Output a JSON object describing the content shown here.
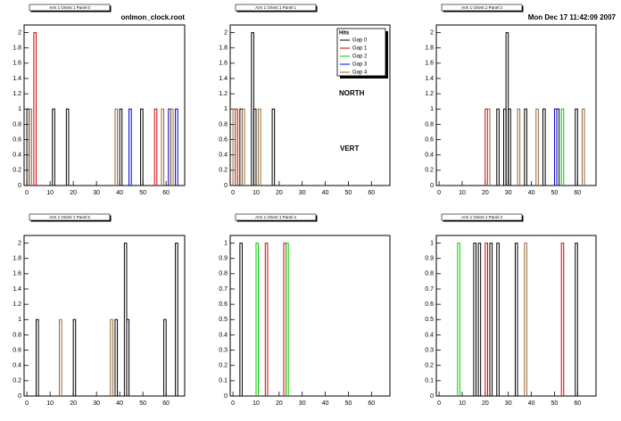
{
  "file": "onlmon_clock.root",
  "timestamp": "Mon Dec 17 11:42:09 2007",
  "chart_data": [
    {
      "type": "bar",
      "title": "Arm 1 Orient 1 Panel 0",
      "xlim": [
        -1.2,
        68
      ],
      "xticks": [
        0,
        10,
        20,
        30,
        40,
        50,
        60
      ],
      "ylim": [
        0,
        2.1
      ],
      "yticks": [
        0,
        0.2,
        0.4,
        0.6,
        0.8,
        1,
        1.2,
        1.4,
        1.6,
        1.8,
        2
      ],
      "series": [
        {
          "color": "#000000",
          "x": [
            0,
            11,
            17,
            40,
            49
          ],
          "values": [
            1,
            1,
            1,
            1,
            1
          ]
        },
        {
          "color": "#cc0000",
          "x": [
            3,
            55
          ],
          "values": [
            2,
            1
          ]
        },
        {
          "color": "#0000cc",
          "x": [
            44,
            61,
            64
          ],
          "values": [
            1,
            1,
            1
          ]
        },
        {
          "color": "#996633",
          "x": [
            1,
            38,
            58,
            62
          ],
          "values": [
            1,
            1,
            1,
            1
          ]
        }
      ]
    },
    {
      "type": "bar",
      "title": "Arm 1 Orient 1 Panel 1",
      "xlim": [
        -1.2,
        68
      ],
      "xticks": [
        0,
        10,
        20,
        30,
        40,
        50,
        60
      ],
      "ylim": [
        0,
        2.1
      ],
      "yticks": [
        0,
        0.2,
        0.4,
        0.6,
        0.8,
        1,
        1.2,
        1.4,
        1.6,
        1.8,
        2
      ],
      "legend_title": "Hits",
      "annotations": [
        "NORTH",
        "VERT"
      ],
      "series": [
        {
          "name": "Gap 0",
          "color": "#000000",
          "x": [
            3,
            8,
            9,
            17
          ],
          "values": [
            1,
            2,
            1,
            1
          ]
        },
        {
          "name": "Gap 1",
          "color": "#cc0000",
          "x": [
            1
          ],
          "values": [
            1
          ]
        },
        {
          "name": "Gap 2",
          "color": "#00cc00",
          "x": [],
          "values": []
        },
        {
          "name": "Gap 3",
          "color": "#0000cc",
          "x": [],
          "values": []
        },
        {
          "name": "Gap 4",
          "color": "#996633",
          "x": [
            0,
            4,
            11
          ],
          "values": [
            1,
            1,
            1
          ]
        }
      ]
    },
    {
      "type": "bar",
      "title": "Arm 1 Orient 1 Panel 2",
      "xlim": [
        -1.2,
        68
      ],
      "xticks": [
        0,
        10,
        20,
        30,
        40,
        50,
        60
      ],
      "ylim": [
        0,
        2.1
      ],
      "yticks": [
        0,
        0.2,
        0.4,
        0.6,
        0.8,
        1,
        1.2,
        1.4,
        1.6,
        1.8,
        2
      ],
      "series": [
        {
          "color": "#000000",
          "x": [
            25,
            28,
            29,
            30,
            37,
            45,
            51,
            59
          ],
          "values": [
            1,
            1,
            2,
            1,
            1,
            1,
            1,
            1
          ]
        },
        {
          "color": "#cc0000",
          "x": [
            20
          ],
          "values": [
            1
          ]
        },
        {
          "color": "#00cc00",
          "x": [
            53
          ],
          "values": [
            1
          ]
        },
        {
          "color": "#0000cc",
          "x": [
            50
          ],
          "values": [
            1
          ]
        },
        {
          "color": "#996633",
          "x": [
            21,
            34,
            42,
            62
          ],
          "values": [
            1,
            1,
            1,
            1
          ]
        }
      ]
    },
    {
      "type": "bar",
      "title": "Arm 1 Orient 1 Panel 5",
      "xlim": [
        -1.2,
        68
      ],
      "xticks": [
        0,
        10,
        20,
        30,
        40,
        50,
        60
      ],
      "ylim": [
        0,
        2.1
      ],
      "yticks": [
        0,
        0.2,
        0.4,
        0.6,
        0.8,
        1,
        1.2,
        1.4,
        1.6,
        1.8,
        2
      ],
      "series": [
        {
          "color": "#000000",
          "x": [
            4,
            20,
            38,
            42,
            43,
            59,
            64
          ],
          "values": [
            1,
            1,
            1,
            2,
            1,
            1,
            2
          ]
        },
        {
          "color": "#996633",
          "x": [
            14,
            36
          ],
          "values": [
            1,
            1
          ]
        }
      ]
    },
    {
      "type": "bar",
      "title": "Arm 1 Orient 1 Panel 4",
      "xlim": [
        -1.2,
        68
      ],
      "xticks": [
        0,
        10,
        20,
        30,
        40,
        50,
        60
      ],
      "ylim": [
        0,
        1.05
      ],
      "yticks": [
        0,
        0.1,
        0.2,
        0.3,
        0.4,
        0.5,
        0.6,
        0.7,
        0.8,
        0.9,
        1
      ],
      "series": [
        {
          "color": "#000000",
          "x": [
            3
          ],
          "values": [
            1
          ]
        },
        {
          "color": "#cc0000",
          "x": [
            14,
            22
          ],
          "values": [
            1,
            1
          ]
        },
        {
          "color": "#00cc00",
          "x": [
            10,
            23
          ],
          "values": [
            1,
            1
          ]
        }
      ]
    },
    {
      "type": "bar",
      "title": "Arm 1 Orient 1 Panel 3",
      "xlim": [
        -1.2,
        68
      ],
      "xticks": [
        0,
        10,
        20,
        30,
        40,
        50,
        60
      ],
      "ylim": [
        0,
        1.05
      ],
      "yticks": [
        0,
        0.1,
        0.2,
        0.3,
        0.4,
        0.5,
        0.6,
        0.7,
        0.8,
        0.9,
        1
      ],
      "series": [
        {
          "color": "#000000",
          "x": [
            15,
            17,
            22,
            25,
            33,
            59
          ],
          "values": [
            1,
            1,
            1,
            1,
            1,
            1
          ]
        },
        {
          "color": "#cc0000",
          "x": [
            20,
            53
          ],
          "values": [
            1,
            1
          ]
        },
        {
          "color": "#00cc00",
          "x": [
            8
          ],
          "values": [
            1
          ]
        },
        {
          "color": "#996633",
          "x": [
            37
          ],
          "values": [
            1
          ]
        }
      ]
    }
  ]
}
